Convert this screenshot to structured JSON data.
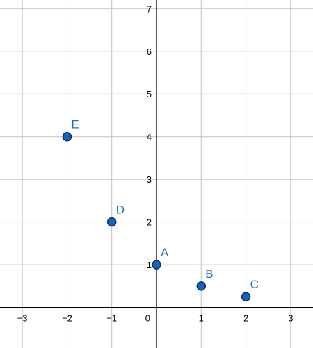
{
  "chart_data": {
    "type": "scatter",
    "title": "",
    "xlabel": "",
    "ylabel": "",
    "xlim": [
      -3.5,
      3.5
    ],
    "ylim": [
      -0.95,
      7.2
    ],
    "grid": true,
    "x_ticks": [
      -3,
      -2,
      -1,
      1,
      2,
      3
    ],
    "x_tick_labels": [
      "−3",
      "−2",
      "−1",
      "1",
      "2",
      "3"
    ],
    "y_ticks": [
      1,
      2,
      3,
      4,
      5,
      6,
      7
    ],
    "y_tick_labels": [
      "1",
      "2",
      "3",
      "4",
      "5",
      "6",
      "7"
    ],
    "origin_label": "0",
    "points": [
      {
        "label": "A",
        "x": 0,
        "y": 1
      },
      {
        "label": "B",
        "x": 1,
        "y": 0.5
      },
      {
        "label": "C",
        "x": 2,
        "y": 0.25
      },
      {
        "label": "D",
        "x": -1,
        "y": 2
      },
      {
        "label": "E",
        "x": -2,
        "y": 4
      }
    ],
    "colors": {
      "point_fill": "#1565c0",
      "point_stroke": "#0b2e5c",
      "label": "#1e6fb5",
      "grid": "#c0c0c0",
      "axis": "#000000"
    }
  }
}
